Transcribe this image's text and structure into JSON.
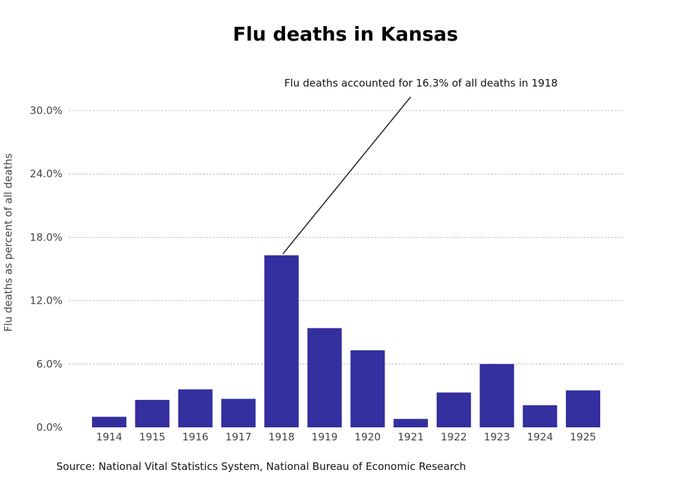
{
  "chart_data": {
    "type": "bar",
    "title": "Flu deaths in Kansas",
    "xlabel": "",
    "ylabel": "Flu deaths as percent of all deaths",
    "categories": [
      "1914",
      "1915",
      "1916",
      "1917",
      "1918",
      "1919",
      "1920",
      "1921",
      "1922",
      "1923",
      "1924",
      "1925"
    ],
    "values": [
      1.0,
      2.6,
      3.6,
      2.7,
      16.3,
      9.4,
      7.3,
      0.8,
      3.3,
      6.0,
      2.1,
      3.5
    ],
    "ylim": [
      0,
      30
    ],
    "yticks": [
      "0.0%",
      "6.0%",
      "12.0%",
      "18.0%",
      "24.0%",
      "30.0%"
    ],
    "grid": "horizontal dashed",
    "bar_color": "#332f9f",
    "grid_color": "#b0b0b0",
    "annotation": {
      "text": "Flu deaths accounted for 16.3% of all deaths in 1918",
      "category": "1918",
      "value": 16.3
    },
    "source": "Source: National Vital Statistics System, National Bureau of Economic Research"
  }
}
